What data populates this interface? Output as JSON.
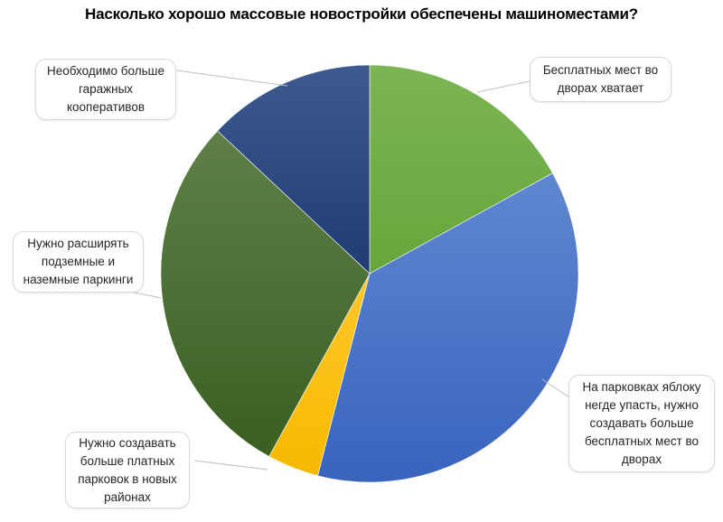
{
  "chart_data": {
    "type": "pie",
    "title": "Насколько хорошо массовые новостройки обеспечены машиноместами?",
    "start_angle_deg": 0,
    "direction": "clockwise",
    "legend": "none (data callouts)",
    "slices": [
      {
        "label": "Бесплатных мест во дворах хватает",
        "value": 17,
        "color": "#70ad47"
      },
      {
        "label": "На парковках яблоку негде упасть, нужно создавать больше бесплатных мест во дворах",
        "value": 37,
        "color": "#4472c4"
      },
      {
        "label": "Нужно создавать больше платных парковок в новых районах",
        "value": 4,
        "color": "#ffc000"
      },
      {
        "label": "Нужно расширять подземные и наземные паркинги",
        "value": 29,
        "color": "#43682b"
      },
      {
        "label": "Необходимо больше гаражных кооперативов",
        "value": 13,
        "color": "#264478"
      }
    ]
  },
  "callouts": {
    "c0": "Бесплатных мест во дворах хватает",
    "c1": "На парковках яблоку негде упасть, нужно создавать больше бесплатных мест во дворах",
    "c2": "Нужно создавать больше платных парковок в новых районах",
    "c3": "Нужно расширять подземные и наземные паркинги",
    "c4": "Необходимо больше гаражных кооперативов"
  }
}
